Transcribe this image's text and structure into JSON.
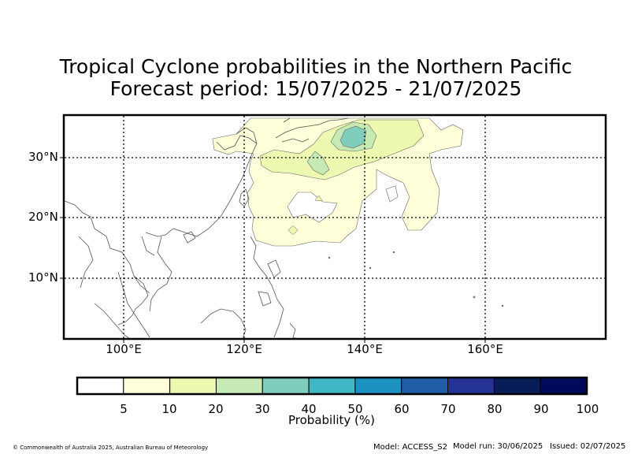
{
  "title": {
    "line1": "Tropical Cyclone probabilities in the Northern Pacific",
    "line2": "Forecast period: 15/07/2025 - 21/07/2025"
  },
  "map": {
    "lat_labels": [
      "30°N",
      "20°N",
      "10°N"
    ],
    "lon_labels": [
      "100°E",
      "120°E",
      "140°E",
      "160°E"
    ],
    "colors": {
      "land_outline": "#555555",
      "prob_5_10": "#ffffd9",
      "prob_10_20": "#edf8b1",
      "prob_20_30": "#c7e9b4",
      "prob_30_40": "#7fcdbb",
      "grid": "#000000"
    }
  },
  "colorbar": {
    "label": "Probability (%)",
    "ticks": [
      "5",
      "10",
      "20",
      "30",
      "40",
      "50",
      "60",
      "70",
      "80",
      "90",
      "100"
    ],
    "colors": [
      "#ffffff",
      "#ffffd9",
      "#edf8b1",
      "#c7e9b4",
      "#7fcdbb",
      "#41b6c4",
      "#1d91c0",
      "#225ea8",
      "#253494",
      "#081d58",
      "#000a5a"
    ]
  },
  "footer": {
    "copyright": "© Commonwealth of Australia 2025, Australian Bureau of Meteorology",
    "model": "Model: ACCESS_S2",
    "model_run": "Model run: 30/06/2025",
    "issued": "Issued: 02/07/2025"
  }
}
